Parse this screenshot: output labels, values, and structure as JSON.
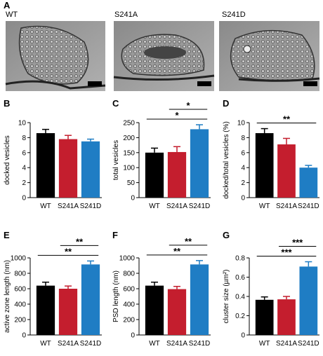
{
  "panel_a": {
    "panel_label": "A",
    "images": [
      {
        "label": "WT"
      },
      {
        "label": "S241A"
      },
      {
        "label": "S241D"
      }
    ]
  },
  "chart_data": [
    {
      "type": "bar",
      "panel_label": "B",
      "y_label": "docked vesicles",
      "categories": [
        "WT",
        "S241A",
        "S241D"
      ],
      "values": [
        8.6,
        7.8,
        7.5
      ],
      "errors": [
        0.5,
        0.5,
        0.3
      ],
      "colors": [
        "#000000",
        "#c41e2e",
        "#1f7dc4"
      ],
      "ylim": [
        0,
        10
      ],
      "yticks": [
        0,
        2,
        4,
        6,
        8,
        10
      ],
      "annotations": []
    },
    {
      "type": "bar",
      "panel_label": "C",
      "y_label": "total vesicles",
      "categories": [
        "WT",
        "S241A",
        "S241D"
      ],
      "values": [
        150,
        152,
        228
      ],
      "errors": [
        15,
        18,
        15
      ],
      "colors": [
        "#000000",
        "#c41e2e",
        "#1f7dc4"
      ],
      "ylim": [
        0,
        250
      ],
      "yticks": [
        0,
        50,
        100,
        150,
        200,
        250
      ],
      "annotations": [
        {
          "text": "*",
          "between": [
            "WT",
            "S241D"
          ]
        },
        {
          "text": "*",
          "between": [
            "S241A",
            "S241D"
          ]
        }
      ]
    },
    {
      "type": "bar",
      "panel_label": "D",
      "y_label": "docked/total vesicles (%)",
      "categories": [
        "WT",
        "S241A",
        "S241D"
      ],
      "values": [
        8.6,
        7.1,
        4.0
      ],
      "errors": [
        0.6,
        0.8,
        0.3
      ],
      "colors": [
        "#000000",
        "#c41e2e",
        "#1f7dc4"
      ],
      "ylim": [
        0,
        10
      ],
      "yticks": [
        0,
        2,
        4,
        6,
        8,
        10
      ],
      "annotations": [
        {
          "text": "**",
          "between": [
            "WT",
            "S241D"
          ]
        }
      ]
    },
    {
      "type": "bar",
      "panel_label": "E",
      "y_label": "active zone length (nm)",
      "categories": [
        "WT",
        "S241A",
        "S241D"
      ],
      "values": [
        640,
        600,
        915
      ],
      "errors": [
        45,
        35,
        45
      ],
      "colors": [
        "#000000",
        "#c41e2e",
        "#1f7dc4"
      ],
      "ylim": [
        0,
        1000
      ],
      "yticks": [
        0,
        200,
        400,
        600,
        800,
        1000
      ],
      "annotations": [
        {
          "text": "**",
          "between": [
            "WT",
            "S241D"
          ]
        },
        {
          "text": "**",
          "between": [
            "S241A",
            "S241D"
          ]
        }
      ]
    },
    {
      "type": "bar",
      "panel_label": "F",
      "y_label": "PSD length (nm)",
      "categories": [
        "WT",
        "S241A",
        "S241D"
      ],
      "values": [
        640,
        595,
        915
      ],
      "errors": [
        45,
        35,
        50
      ],
      "colors": [
        "#000000",
        "#c41e2e",
        "#1f7dc4"
      ],
      "ylim": [
        0,
        1000
      ],
      "yticks": [
        0,
        200,
        400,
        600,
        800,
        1000
      ],
      "annotations": [
        {
          "text": "**",
          "between": [
            "WT",
            "S241D"
          ]
        },
        {
          "text": "**",
          "between": [
            "S241A",
            "S241D"
          ]
        }
      ]
    },
    {
      "type": "bar",
      "panel_label": "G",
      "y_label": "cluster size (µm²)",
      "categories": [
        "WT",
        "S241A",
        "S241D"
      ],
      "values": [
        0.365,
        0.37,
        0.71
      ],
      "errors": [
        0.03,
        0.03,
        0.05
      ],
      "colors": [
        "#000000",
        "#c41e2e",
        "#1f7dc4"
      ],
      "ylim": [
        0,
        0.8
      ],
      "yticks": [
        0,
        0.2,
        0.4,
        0.6,
        0.8
      ],
      "annotations": [
        {
          "text": "***",
          "between": [
            "WT",
            "S241D"
          ]
        },
        {
          "text": "***",
          "between": [
            "S241A",
            "S241D"
          ]
        }
      ]
    }
  ]
}
